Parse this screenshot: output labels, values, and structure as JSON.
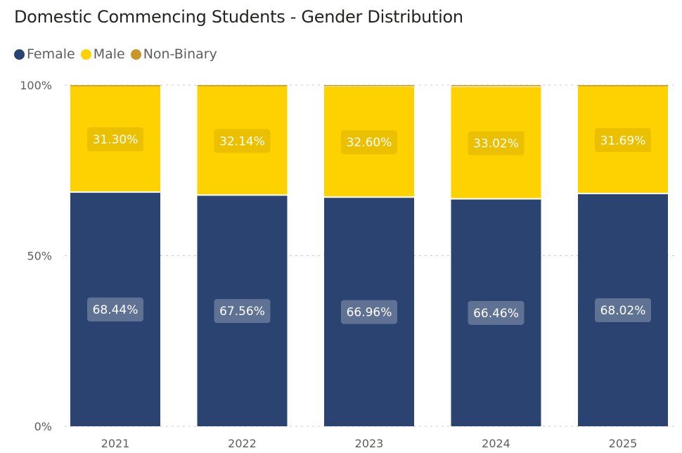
{
  "chart_data": {
    "type": "bar",
    "stacked": "100%",
    "title": "Domestic Commencing Students - Gender Distribution",
    "categories": [
      "2021",
      "2022",
      "2023",
      "2024",
      "2025"
    ],
    "series": [
      {
        "name": "Female",
        "color": "#2a4371",
        "values": [
          68.44,
          67.56,
          66.96,
          66.46,
          68.02
        ],
        "labels": [
          "68.44%",
          "67.56%",
          "66.96%",
          "66.46%",
          "68.02%"
        ]
      },
      {
        "name": "Male",
        "color": "#fdd200",
        "values": [
          31.3,
          32.14,
          32.6,
          33.02,
          31.69
        ],
        "labels": [
          "31.30%",
          "32.14%",
          "32.60%",
          "33.02%",
          "31.69%"
        ]
      },
      {
        "name": "Non-Binary",
        "color": "#c9962a",
        "values": [
          0.26,
          0.3,
          0.44,
          0.52,
          0.29
        ]
      }
    ],
    "yticks": [
      "0%",
      "50%",
      "100%"
    ],
    "ylim": [
      0,
      100
    ],
    "grid": "dotted horizontal",
    "legend": "top-left"
  }
}
